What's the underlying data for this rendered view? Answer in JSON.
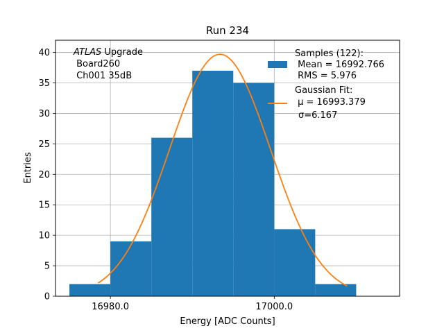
{
  "chart_data": {
    "type": "histogram",
    "title": "Run 234",
    "xlabel": "Energy [ADC Counts]",
    "ylabel": "Entries",
    "xlim": [
      16973.3,
      17015.3
    ],
    "ylim": [
      0,
      42
    ],
    "grid": true,
    "x_ticks": [
      16980,
      17000
    ],
    "x_tick_labels": [
      "16980.0",
      "17000.0"
    ],
    "y_ticks": [
      0,
      5,
      10,
      15,
      20,
      25,
      30,
      35,
      40
    ],
    "y_tick_labels": [
      "0",
      "5",
      "10",
      "15",
      "20",
      "25",
      "30",
      "35",
      "40"
    ],
    "bins": [
      {
        "x0": 16975,
        "x1": 16980,
        "count": 2
      },
      {
        "x0": 16980,
        "x1": 16985,
        "count": 9
      },
      {
        "x0": 16985,
        "x1": 16990,
        "count": 26
      },
      {
        "x0": 16990,
        "x1": 16995,
        "count": 37
      },
      {
        "x0": 16995,
        "x1": 17000,
        "count": 35
      },
      {
        "x0": 17000,
        "x1": 17005,
        "count": 11
      },
      {
        "x0": 17005,
        "x1": 17010,
        "count": 2
      }
    ],
    "fit": {
      "type": "gaussian",
      "mu": 16993.379,
      "sigma": 6.167,
      "amplitude": 39.7,
      "x_range": [
        16978.5,
        17008.9
      ]
    },
    "colors": {
      "histogram": "#1f77b4",
      "fit": "#ff7f0e",
      "grid": "#b0b0b0"
    },
    "legend_position": "top-right",
    "legend": {
      "samples": {
        "line1": "Samples (122):",
        "line2": " Mean = 16992.766",
        "line3": " RMS = 5.976"
      },
      "fit": {
        "line1": "Gaussian Fit:",
        "line2_mu": " μ = 16993.379",
        "line3_sigma": "σ=6.167"
      }
    },
    "annotation": {
      "italic": "ATLAS",
      "rest": " Upgrade",
      "line2": " Board260",
      "line3": " Ch001 35dB"
    }
  }
}
